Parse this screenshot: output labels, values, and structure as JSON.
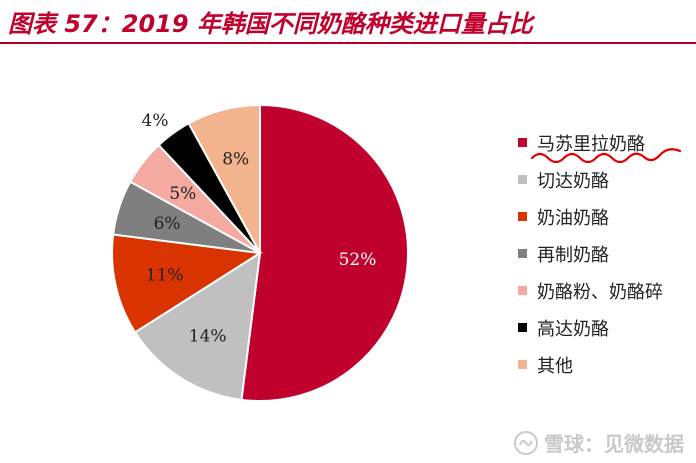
{
  "header": {
    "title": "图表 57：2019 年韩国不同奶酪种类进口量占比"
  },
  "chart_data": {
    "type": "pie",
    "title": "图表 57：2019 年韩国不同奶酪种类进口量占比",
    "labels": [
      "马苏里拉奶酪",
      "切达奶酪",
      "奶油奶酪",
      "再制奶酪",
      "奶酪粉、奶酪碎",
      "高达奶酪",
      "其他"
    ],
    "values": [
      52,
      14,
      11,
      6,
      5,
      4,
      8
    ],
    "value_labels": [
      "52%",
      "14%",
      "11%",
      "6%",
      "5%",
      "4%",
      "8%"
    ],
    "colors": [
      "#c0002d",
      "#c0c0c0",
      "#d93400",
      "#7f7f7f",
      "#f4aaa0",
      "#000000",
      "#f3b38d"
    ],
    "label_colors": [
      "#ffffff",
      "#222222",
      "#222222",
      "#222222",
      "#222222",
      "#222222",
      "#222222"
    ],
    "legend_position": "right",
    "start_angle_deg": 0,
    "direction": "clockwise"
  },
  "watermark": {
    "text": "雪球：见微数据"
  }
}
